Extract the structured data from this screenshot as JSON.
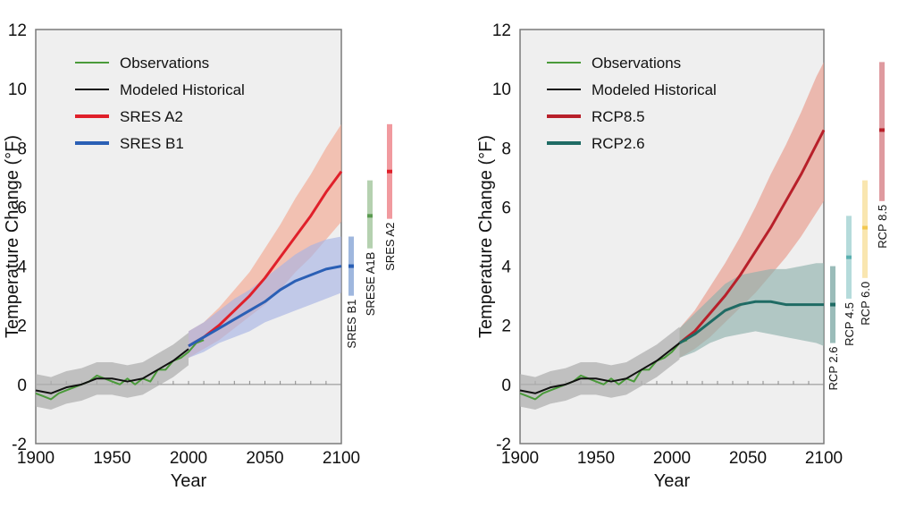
{
  "colors": {
    "observations": "#4a9a3a",
    "historical": "#111111",
    "sres_a2": "#e0202a",
    "sres_a2_band": "#f2a890",
    "sres_b1": "#2a5fb5",
    "sres_b1_band": "#a8b4e4",
    "sres_a1b": "#5a9a50",
    "rcp85": "#b8202a",
    "rcp85_band": "#e89a8a",
    "rcp26": "#1f6b64",
    "rcp26_band": "#8fb0ac",
    "rcp45": "#5ab0b0",
    "rcp60": "#f2c850",
    "hist_band": "#b0b0b0",
    "plot_bg": "#efefef"
  },
  "chart_data": [
    {
      "type": "line",
      "title": "",
      "xlabel": "Year",
      "ylabel": "Temperature Change (°F)",
      "xlim": [
        1900,
        2100
      ],
      "ylim": [
        -2,
        12
      ],
      "x_ticks": [
        "1900",
        "1950",
        "2000",
        "2050",
        "2100"
      ],
      "y_ticks": [
        "-2",
        "0",
        "2",
        "4",
        "6",
        "8",
        "10",
        "12"
      ],
      "legend": {
        "position": "top-left",
        "entries": [
          "Observations",
          "Modeled Historical",
          "SRES A2",
          "SRES B1"
        ]
      },
      "series": [
        {
          "name": "Observations",
          "color_key": "observations",
          "x": [
            1900,
            1905,
            1910,
            1915,
            1920,
            1925,
            1930,
            1935,
            1940,
            1945,
            1950,
            1955,
            1960,
            1965,
            1970,
            1975,
            1980,
            1985,
            1990,
            1995,
            2000,
            2005,
            2010
          ],
          "y": [
            -0.3,
            -0.4,
            -0.5,
            -0.3,
            -0.2,
            -0.1,
            0.0,
            0.1,
            0.3,
            0.2,
            0.1,
            0.0,
            0.2,
            0.0,
            0.2,
            0.1,
            0.5,
            0.5,
            0.8,
            0.9,
            1.1,
            1.4,
            1.5
          ]
        },
        {
          "name": "Modeled Historical",
          "color_key": "historical",
          "x": [
            1900,
            1910,
            1920,
            1930,
            1940,
            1950,
            1960,
            1970,
            1980,
            1990,
            2000
          ],
          "y": [
            -0.2,
            -0.3,
            -0.1,
            0.0,
            0.2,
            0.2,
            0.1,
            0.2,
            0.5,
            0.8,
            1.2
          ]
        },
        {
          "name": "SRES A2",
          "color_key": "sres_a2",
          "x": [
            2000,
            2010,
            2020,
            2030,
            2040,
            2050,
            2060,
            2070,
            2080,
            2090,
            2100
          ],
          "y": [
            1.3,
            1.6,
            2.0,
            2.5,
            3.0,
            3.6,
            4.3,
            5.0,
            5.7,
            6.5,
            7.2
          ],
          "band_lower": [
            0.9,
            1.2,
            1.5,
            1.9,
            2.3,
            2.7,
            3.2,
            3.8,
            4.3,
            4.9,
            5.5
          ],
          "band_upper": [
            1.8,
            2.1,
            2.6,
            3.2,
            3.8,
            4.6,
            5.4,
            6.3,
            7.1,
            8.0,
            8.8
          ]
        },
        {
          "name": "SRES B1",
          "color_key": "sres_b1",
          "x": [
            2000,
            2010,
            2020,
            2030,
            2040,
            2050,
            2060,
            2070,
            2080,
            2090,
            2100
          ],
          "y": [
            1.3,
            1.6,
            1.9,
            2.2,
            2.5,
            2.8,
            3.2,
            3.5,
            3.7,
            3.9,
            4.0
          ],
          "band_lower": [
            0.9,
            1.1,
            1.4,
            1.6,
            1.8,
            2.1,
            2.3,
            2.5,
            2.7,
            2.9,
            3.1
          ],
          "band_upper": [
            1.8,
            2.1,
            2.5,
            2.9,
            3.2,
            3.6,
            4.0,
            4.4,
            4.7,
            4.9,
            5.0
          ]
        }
      ],
      "range_bars": [
        {
          "label": "SRES B1",
          "color_key": "sres_b1",
          "low": 3.0,
          "high": 5.0,
          "median": 4.0
        },
        {
          "label": "SRESE A1B",
          "color_key": "sres_a1b",
          "low": 4.6,
          "high": 6.9,
          "median": 5.7
        },
        {
          "label": "SRES A2",
          "color_key": "sres_a2",
          "low": 5.6,
          "high": 8.8,
          "median": 7.2
        }
      ]
    },
    {
      "type": "line",
      "title": "",
      "xlabel": "Year",
      "ylabel": "Temperature Change (°F)",
      "xlim": [
        1900,
        2100
      ],
      "ylim": [
        -2,
        12
      ],
      "x_ticks": [
        "1900",
        "1950",
        "2000",
        "2050",
        "2100"
      ],
      "y_ticks": [
        "-2",
        "0",
        "2",
        "4",
        "6",
        "8",
        "10",
        "12"
      ],
      "legend": {
        "position": "top-left",
        "entries": [
          "Observations",
          "Modeled Historical",
          "RCP8.5",
          "RCP2.6"
        ]
      },
      "series": [
        {
          "name": "Observations",
          "color_key": "observations",
          "x": [
            1900,
            1905,
            1910,
            1915,
            1920,
            1925,
            1930,
            1935,
            1940,
            1945,
            1950,
            1955,
            1960,
            1965,
            1970,
            1975,
            1980,
            1985,
            1990,
            1995,
            2000,
            2005,
            2010
          ],
          "y": [
            -0.3,
            -0.4,
            -0.5,
            -0.3,
            -0.2,
            -0.1,
            0.0,
            0.1,
            0.3,
            0.2,
            0.1,
            0.0,
            0.2,
            0.0,
            0.2,
            0.1,
            0.5,
            0.5,
            0.8,
            0.9,
            1.1,
            1.4,
            1.5
          ]
        },
        {
          "name": "Modeled Historical",
          "color_key": "historical",
          "x": [
            1900,
            1910,
            1920,
            1930,
            1940,
            1950,
            1960,
            1970,
            1980,
            1990,
            2000,
            2005
          ],
          "y": [
            -0.2,
            -0.3,
            -0.1,
            0.0,
            0.2,
            0.2,
            0.1,
            0.2,
            0.5,
            0.8,
            1.2,
            1.4
          ]
        },
        {
          "name": "RCP8.5",
          "color_key": "rcp85",
          "x": [
            2005,
            2015,
            2025,
            2035,
            2045,
            2055,
            2065,
            2075,
            2085,
            2095,
            2100
          ],
          "y": [
            1.4,
            1.8,
            2.4,
            3.0,
            3.7,
            4.5,
            5.3,
            6.2,
            7.1,
            8.1,
            8.6
          ],
          "band_lower": [
            0.9,
            1.2,
            1.6,
            2.1,
            2.6,
            3.1,
            3.7,
            4.3,
            5.0,
            5.8,
            6.2
          ],
          "band_upper": [
            1.9,
            2.5,
            3.3,
            4.1,
            5.0,
            6.0,
            7.1,
            8.1,
            9.2,
            10.4,
            10.9
          ]
        },
        {
          "name": "RCP2.6",
          "color_key": "rcp26",
          "x": [
            2005,
            2015,
            2025,
            2035,
            2045,
            2055,
            2065,
            2075,
            2085,
            2095,
            2100
          ],
          "y": [
            1.4,
            1.7,
            2.1,
            2.5,
            2.7,
            2.8,
            2.8,
            2.7,
            2.7,
            2.7,
            2.7
          ],
          "band_lower": [
            0.9,
            1.1,
            1.4,
            1.6,
            1.7,
            1.8,
            1.7,
            1.6,
            1.5,
            1.4,
            1.3
          ],
          "band_upper": [
            1.9,
            2.4,
            2.9,
            3.4,
            3.7,
            3.8,
            3.9,
            3.9,
            4.0,
            4.1,
            4.1
          ]
        }
      ],
      "range_bars": [
        {
          "label": "RCP 2.6",
          "color_key": "rcp26",
          "low": 1.4,
          "high": 4.0,
          "median": 2.7
        },
        {
          "label": "RCP 4.5",
          "color_key": "rcp45",
          "low": 2.9,
          "high": 5.7,
          "median": 4.3
        },
        {
          "label": "RCP 6.0",
          "color_key": "rcp60",
          "low": 3.6,
          "high": 6.9,
          "median": 5.3
        },
        {
          "label": "RCP 8.5",
          "color_key": "rcp85",
          "low": 6.2,
          "high": 10.9,
          "median": 8.6
        }
      ]
    }
  ]
}
